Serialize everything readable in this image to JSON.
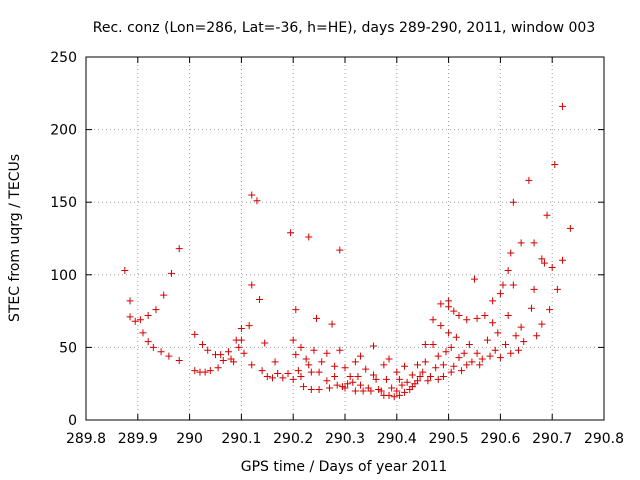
{
  "chart_data": {
    "type": "scatter",
    "title": "Rec. conz (Lon=286, Lat=-36, h=HE), days 289-290, 2011, window 003",
    "xlabel": "GPS time / Days of year 2011",
    "ylabel": "STEC from uqrg / TECUs",
    "xlim": [
      289.8,
      290.8
    ],
    "ylim": [
      0,
      250
    ],
    "x_ticks": [
      "289.8",
      "289.9",
      "290",
      "290.1",
      "290.2",
      "290.3",
      "290.4",
      "290.5",
      "290.6",
      "290.7",
      "290.8"
    ],
    "y_ticks": [
      "0",
      "50",
      "100",
      "150",
      "200",
      "250"
    ],
    "grid": true,
    "marker": "+",
    "color": "#d40000",
    "points": [
      [
        289.875,
        103
      ],
      [
        289.885,
        82
      ],
      [
        289.885,
        71
      ],
      [
        289.895,
        68
      ],
      [
        289.905,
        69
      ],
      [
        289.91,
        60
      ],
      [
        289.92,
        72
      ],
      [
        289.92,
        54
      ],
      [
        289.93,
        50
      ],
      [
        289.935,
        76
      ],
      [
        289.945,
        47
      ],
      [
        289.95,
        86
      ],
      [
        289.96,
        44
      ],
      [
        289.965,
        101
      ],
      [
        289.98,
        118
      ],
      [
        289.98,
        41
      ],
      [
        290.01,
        59
      ],
      [
        290.01,
        34
      ],
      [
        290.02,
        33
      ],
      [
        290.025,
        52
      ],
      [
        290.03,
        33
      ],
      [
        290.035,
        48
      ],
      [
        290.04,
        34
      ],
      [
        290.05,
        45
      ],
      [
        290.055,
        36
      ],
      [
        290.06,
        45
      ],
      [
        290.065,
        41
      ],
      [
        290.075,
        47
      ],
      [
        290.08,
        42
      ],
      [
        290.085,
        40
      ],
      [
        290.09,
        55
      ],
      [
        290.095,
        50
      ],
      [
        290.1,
        63
      ],
      [
        290.1,
        55
      ],
      [
        290.105,
        46
      ],
      [
        290.115,
        65
      ],
      [
        290.12,
        155
      ],
      [
        290.12,
        93
      ],
      [
        290.12,
        38
      ],
      [
        290.13,
        151
      ],
      [
        290.135,
        83
      ],
      [
        290.14,
        34
      ],
      [
        290.145,
        53
      ],
      [
        290.15,
        30
      ],
      [
        290.16,
        29
      ],
      [
        290.165,
        40
      ],
      [
        290.17,
        32
      ],
      [
        290.18,
        29
      ],
      [
        290.19,
        32
      ],
      [
        290.195,
        129
      ],
      [
        290.2,
        28
      ],
      [
        290.2,
        55
      ],
      [
        290.205,
        76
      ],
      [
        290.205,
        45
      ],
      [
        290.21,
        34
      ],
      [
        290.215,
        30
      ],
      [
        290.215,
        50
      ],
      [
        290.22,
        23
      ],
      [
        290.225,
        42
      ],
      [
        290.23,
        126
      ],
      [
        290.23,
        38
      ],
      [
        290.235,
        33
      ],
      [
        290.235,
        21
      ],
      [
        290.24,
        48
      ],
      [
        290.245,
        70
      ],
      [
        290.25,
        33
      ],
      [
        290.25,
        21
      ],
      [
        290.255,
        40
      ],
      [
        290.265,
        46
      ],
      [
        290.265,
        27
      ],
      [
        290.27,
        22
      ],
      [
        290.275,
        66
      ],
      [
        290.28,
        37
      ],
      [
        290.28,
        30
      ],
      [
        290.285,
        24
      ],
      [
        290.29,
        117
      ],
      [
        290.29,
        48
      ],
      [
        290.295,
        23
      ],
      [
        290.3,
        22
      ],
      [
        290.3,
        36
      ],
      [
        290.305,
        25
      ],
      [
        290.31,
        30
      ],
      [
        290.315,
        26
      ],
      [
        290.32,
        40
      ],
      [
        290.32,
        20
      ],
      [
        290.325,
        30
      ],
      [
        290.33,
        44
      ],
      [
        290.33,
        24
      ],
      [
        290.335,
        20
      ],
      [
        290.34,
        35
      ],
      [
        290.345,
        22
      ],
      [
        290.35,
        20
      ],
      [
        290.355,
        31
      ],
      [
        290.355,
        51
      ],
      [
        290.36,
        28
      ],
      [
        290.365,
        21
      ],
      [
        290.37,
        20
      ],
      [
        290.375,
        17
      ],
      [
        290.375,
        38
      ],
      [
        290.38,
        28
      ],
      [
        290.385,
        17
      ],
      [
        290.385,
        42
      ],
      [
        290.39,
        22
      ],
      [
        290.395,
        16
      ],
      [
        290.4,
        33
      ],
      [
        290.4,
        20
      ],
      [
        290.405,
        28
      ],
      [
        290.405,
        17
      ],
      [
        290.41,
        24
      ],
      [
        290.415,
        19
      ],
      [
        290.415,
        37
      ],
      [
        290.42,
        26
      ],
      [
        290.425,
        21
      ],
      [
        290.43,
        31
      ],
      [
        290.43,
        23
      ],
      [
        290.435,
        25
      ],
      [
        290.44,
        38
      ],
      [
        290.44,
        27
      ],
      [
        290.445,
        30
      ],
      [
        290.45,
        33
      ],
      [
        290.455,
        52
      ],
      [
        290.455,
        40
      ],
      [
        290.46,
        27
      ],
      [
        290.465,
        30
      ],
      [
        290.47,
        69
      ],
      [
        290.47,
        52
      ],
      [
        290.475,
        36
      ],
      [
        290.48,
        44
      ],
      [
        290.48,
        28
      ],
      [
        290.485,
        80
      ],
      [
        290.485,
        65
      ],
      [
        290.49,
        38
      ],
      [
        290.49,
        30
      ],
      [
        290.495,
        47
      ],
      [
        290.5,
        82
      ],
      [
        290.5,
        78
      ],
      [
        290.5,
        60
      ],
      [
        290.505,
        50
      ],
      [
        290.505,
        33
      ],
      [
        290.51,
        75
      ],
      [
        290.51,
        37
      ],
      [
        290.515,
        57
      ],
      [
        290.52,
        72
      ],
      [
        290.52,
        43
      ],
      [
        290.525,
        34
      ],
      [
        290.53,
        46
      ],
      [
        290.535,
        69
      ],
      [
        290.535,
        38
      ],
      [
        290.54,
        52
      ],
      [
        290.545,
        40
      ],
      [
        290.55,
        97
      ],
      [
        290.555,
        70
      ],
      [
        290.555,
        46
      ],
      [
        290.56,
        38
      ],
      [
        290.565,
        42
      ],
      [
        290.57,
        72
      ],
      [
        290.575,
        55
      ],
      [
        290.58,
        44
      ],
      [
        290.585,
        67
      ],
      [
        290.585,
        82
      ],
      [
        290.59,
        48
      ],
      [
        290.595,
        60
      ],
      [
        290.6,
        87
      ],
      [
        290.6,
        43
      ],
      [
        290.605,
        93
      ],
      [
        290.61,
        52
      ],
      [
        290.615,
        103
      ],
      [
        290.615,
        72
      ],
      [
        290.62,
        115
      ],
      [
        290.62,
        46
      ],
      [
        290.625,
        150
      ],
      [
        290.625,
        93
      ],
      [
        290.63,
        58
      ],
      [
        290.635,
        48
      ],
      [
        290.64,
        122
      ],
      [
        290.64,
        64
      ],
      [
        290.645,
        54
      ],
      [
        290.655,
        165
      ],
      [
        290.66,
        77
      ],
      [
        290.665,
        122
      ],
      [
        290.665,
        90
      ],
      [
        290.67,
        58
      ],
      [
        290.68,
        111
      ],
      [
        290.68,
        66
      ],
      [
        290.685,
        108
      ],
      [
        290.69,
        141
      ],
      [
        290.695,
        76
      ],
      [
        290.7,
        105
      ],
      [
        290.705,
        176
      ],
      [
        290.71,
        90
      ],
      [
        290.72,
        216
      ],
      [
        290.72,
        110
      ],
      [
        290.735,
        132
      ]
    ]
  }
}
